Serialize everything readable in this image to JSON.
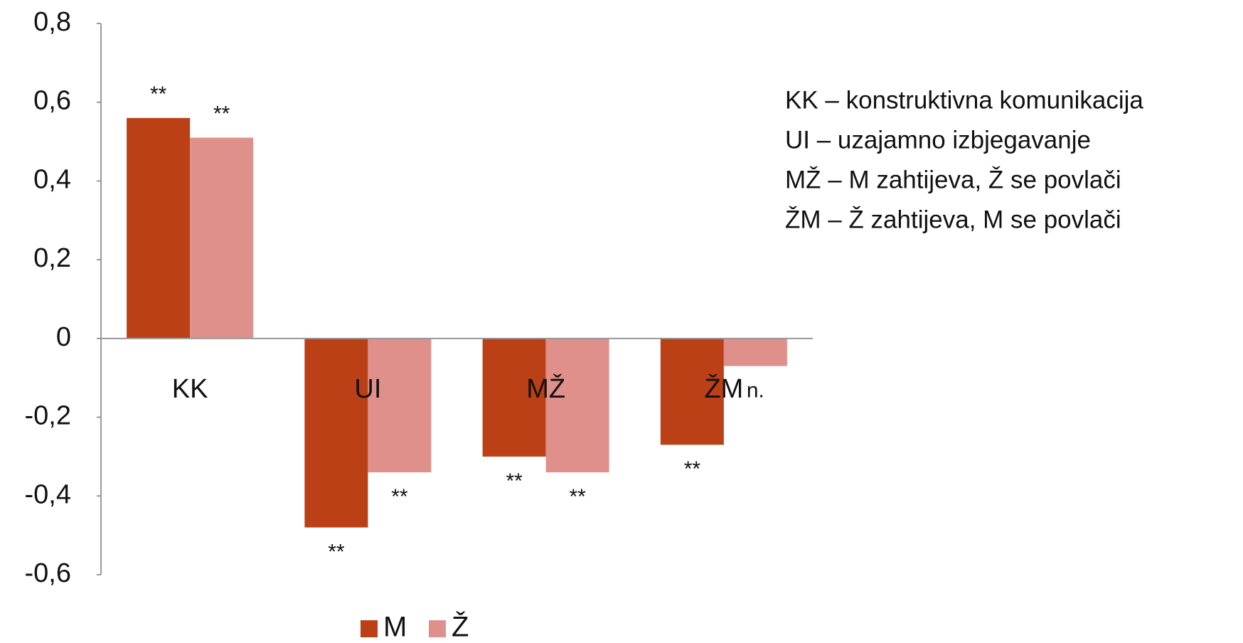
{
  "chart_data": {
    "type": "bar",
    "categories": [
      "KK",
      "UI",
      "MŽ",
      "ŽM"
    ],
    "series": [
      {
        "name": "M",
        "color": "#bc4016",
        "values": [
          0.56,
          -0.48,
          -0.3,
          -0.27
        ],
        "annotations": [
          "**",
          "**",
          "**",
          "**"
        ]
      },
      {
        "name": "Ž",
        "color": "#e0908a",
        "values": [
          0.51,
          -0.34,
          -0.34,
          -0.07
        ],
        "annotations": [
          "**",
          "**",
          "**",
          "n."
        ]
      }
    ],
    "ylim": [
      -0.6,
      0.8
    ],
    "yticks": [
      {
        "value": -0.6,
        "label": "-0,6"
      },
      {
        "value": -0.4,
        "label": "-0,4"
      },
      {
        "value": -0.2,
        "label": "-0,2"
      },
      0,
      {
        "value": 0.2,
        "label": "0,2"
      },
      {
        "value": 0.4,
        "label": "0,4"
      },
      {
        "value": 0.6,
        "label": "0,6"
      },
      {
        "value": 0.8,
        "label": "0,8"
      }
    ],
    "notes": [
      "KK – konstruktivna komunikacija",
      "UI – uzajamno izbjegavanje",
      "MŽ – M zahtijeva, Ž se povlači",
      "ŽM – Ž zahtijeva, M se povlači"
    ],
    "legend": "bottom"
  }
}
